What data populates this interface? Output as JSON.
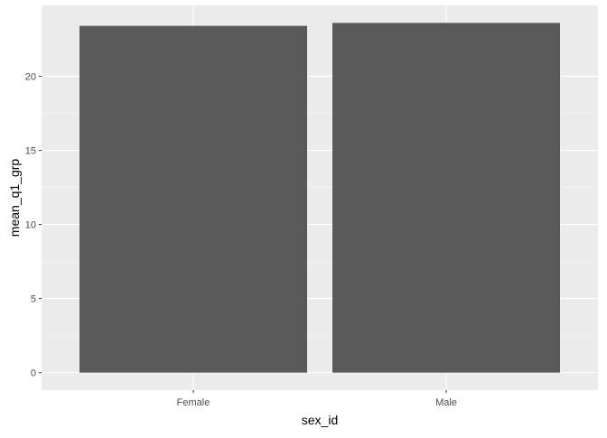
{
  "chart_data": {
    "type": "bar",
    "title": "",
    "xlabel": "sex_id",
    "ylabel": "mean_q1_grp",
    "categories": [
      "Female",
      "Male"
    ],
    "values": [
      23.4,
      23.6
    ],
    "ylim": [
      0,
      23.6
    ],
    "yticks": [
      0,
      5,
      10,
      15,
      20
    ],
    "ytick_labels": [
      "0",
      "5",
      "10",
      "15",
      "20"
    ],
    "grid": true,
    "legend": "none",
    "colors": {
      "panel_background": "#ebebeb",
      "grid_major": "#ffffff",
      "grid_minor": "#f5f5f5",
      "bar_fill": "#595959",
      "tick_mark": "#333333"
    }
  }
}
